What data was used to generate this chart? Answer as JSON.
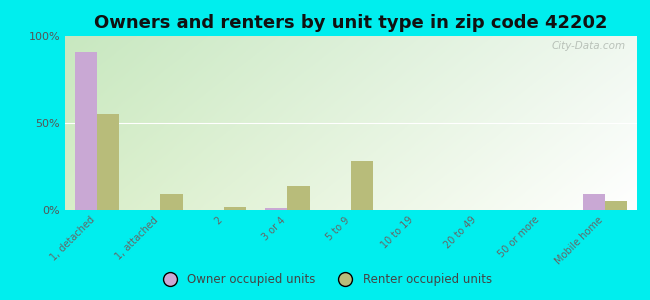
{
  "title": "Owners and renters by unit type in zip code 42202",
  "categories": [
    "1, detached",
    "1, attached",
    "2",
    "3 or 4",
    "5 to 9",
    "10 to 19",
    "20 to 49",
    "50 or more",
    "Mobile home"
  ],
  "owner_values": [
    91,
    0,
    0,
    1,
    0,
    0,
    0,
    0,
    9
  ],
  "renter_values": [
    55,
    9,
    2,
    14,
    28,
    0,
    0,
    0,
    5
  ],
  "owner_color": "#c9a8d4",
  "renter_color": "#b8bc7a",
  "background_color": "#00eeee",
  "grad_color_topleft": "#c8e8c0",
  "grad_color_topright": "#f0f8f0",
  "grad_color_bottomleft": "#d8eec8",
  "grad_color_bottomright": "#ffffff",
  "ylim": [
    0,
    100
  ],
  "yticks": [
    0,
    50,
    100
  ],
  "ytick_labels": [
    "0%",
    "50%",
    "100%"
  ],
  "legend_owner": "Owner occupied units",
  "legend_renter": "Renter occupied units",
  "bar_width": 0.35,
  "title_fontsize": 13
}
